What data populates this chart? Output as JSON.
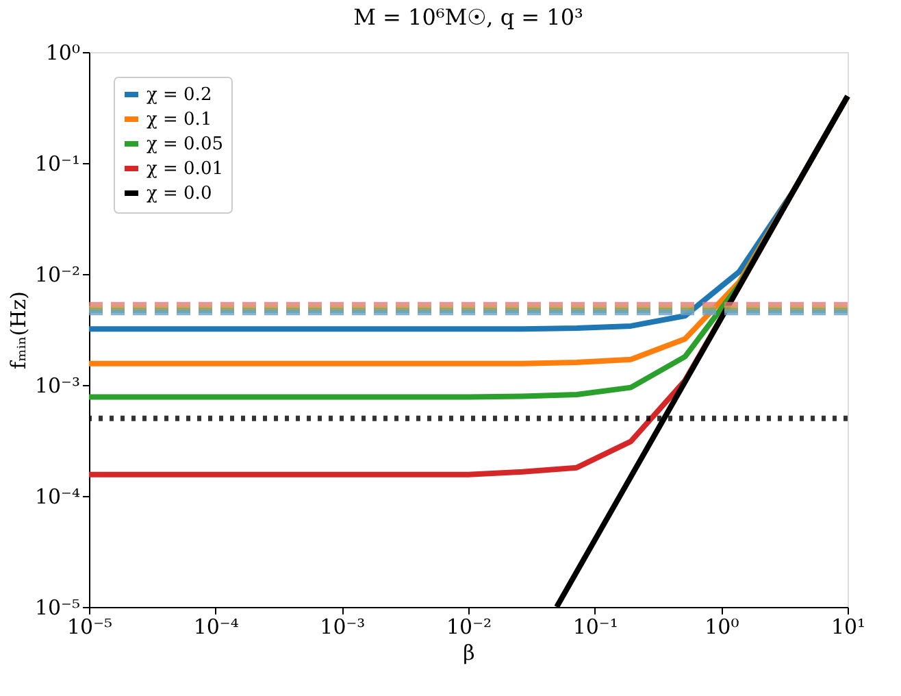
{
  "chart_data": {
    "type": "line",
    "title": "M = 10⁶M☉, q = 10³",
    "xlabel": "β",
    "ylabel": "fₘᵢₙ(Hz)",
    "log": "xy",
    "legend": "top left",
    "grid": false,
    "line_style": "solid",
    "marker": "none",
    "x": [
      1e-05,
      2.68e-05,
      7.2e-05,
      0.000193,
      0.000518,
      0.00139,
      0.00373,
      0.01,
      0.0268,
      0.072,
      0.193,
      0.518,
      1.39,
      3.73,
      10
    ],
    "xlim": [
      1e-05,
      10
    ],
    "ylim": [
      1e-05,
      1
    ],
    "xticks": [
      {
        "value": 1e-05,
        "label": "10⁻⁵"
      },
      {
        "value": 0.0001,
        "label": "10⁻⁴"
      },
      {
        "value": 0.001,
        "label": "10⁻³"
      },
      {
        "value": 0.01,
        "label": "10⁻²"
      },
      {
        "value": 0.1,
        "label": "10⁻¹"
      },
      {
        "value": 1,
        "label": "10⁰"
      },
      {
        "value": 10,
        "label": "10¹"
      }
    ],
    "yticks": [
      {
        "value": 1e-05,
        "label": "10⁻⁵"
      },
      {
        "value": 0.0001,
        "label": "10⁻⁴"
      },
      {
        "value": 0.001,
        "label": "10⁻³"
      },
      {
        "value": 0.01,
        "label": "10⁻²"
      },
      {
        "value": 0.1,
        "label": "10⁻¹"
      },
      {
        "value": 1,
        "label": "10⁰"
      }
    ],
    "series": [
      {
        "name": "χ = 0.2",
        "color": "#1f77b4",
        "values": [
          0.0032,
          0.0032,
          0.0032,
          0.0032,
          0.0032,
          0.0032,
          0.0032,
          0.0032,
          0.0032,
          0.00325,
          0.0034,
          0.0042,
          0.0105,
          0.056,
          0.4
        ]
      },
      {
        "name": "χ = 0.1",
        "color": "#ff7f0e",
        "values": [
          0.00156,
          0.00156,
          0.00156,
          0.00156,
          0.00156,
          0.00156,
          0.00156,
          0.00156,
          0.00156,
          0.0016,
          0.0017,
          0.0026,
          0.0085,
          0.056,
          0.4
        ]
      },
      {
        "name": "χ = 0.05",
        "color": "#2ca02c",
        "values": [
          0.00078,
          0.00078,
          0.00078,
          0.00078,
          0.00078,
          0.00078,
          0.00078,
          0.00078,
          0.00079,
          0.00082,
          0.00095,
          0.0018,
          0.008,
          0.056,
          0.4
        ]
      },
      {
        "name": "χ = 0.01",
        "color": "#d62728",
        "values": [
          0.000156,
          0.000156,
          0.000156,
          0.000156,
          0.000156,
          0.000156,
          0.000156,
          0.000156,
          0.000165,
          0.00018,
          0.00031,
          0.0011,
          0.0077,
          0.056,
          0.4
        ]
      },
      {
        "name": "χ = 0.0",
        "color": "#000000",
        "x": [
          0.05,
          0.193,
          0.518,
          1.39,
          3.73,
          10
        ],
        "values": [
          1e-05,
          0.000149,
          0.00107,
          0.0077,
          0.056,
          0.4
        ]
      }
    ],
    "ref_lines": [
      {
        "axis": "y",
        "value": 0.0053,
        "color": "#e37a7a",
        "line_style": "dashed"
      },
      {
        "axis": "y",
        "value": 0.0049,
        "color": "#d9a04f",
        "line_style": "dashed"
      },
      {
        "axis": "y",
        "value": 0.0047,
        "color": "#7fa85a",
        "line_style": "dashed"
      },
      {
        "axis": "y",
        "value": 0.0045,
        "color": "#6aa0c8",
        "line_style": "dashed"
      },
      {
        "axis": "y",
        "value": 0.0005,
        "color": "#000000",
        "line_style": "dotted"
      }
    ]
  }
}
